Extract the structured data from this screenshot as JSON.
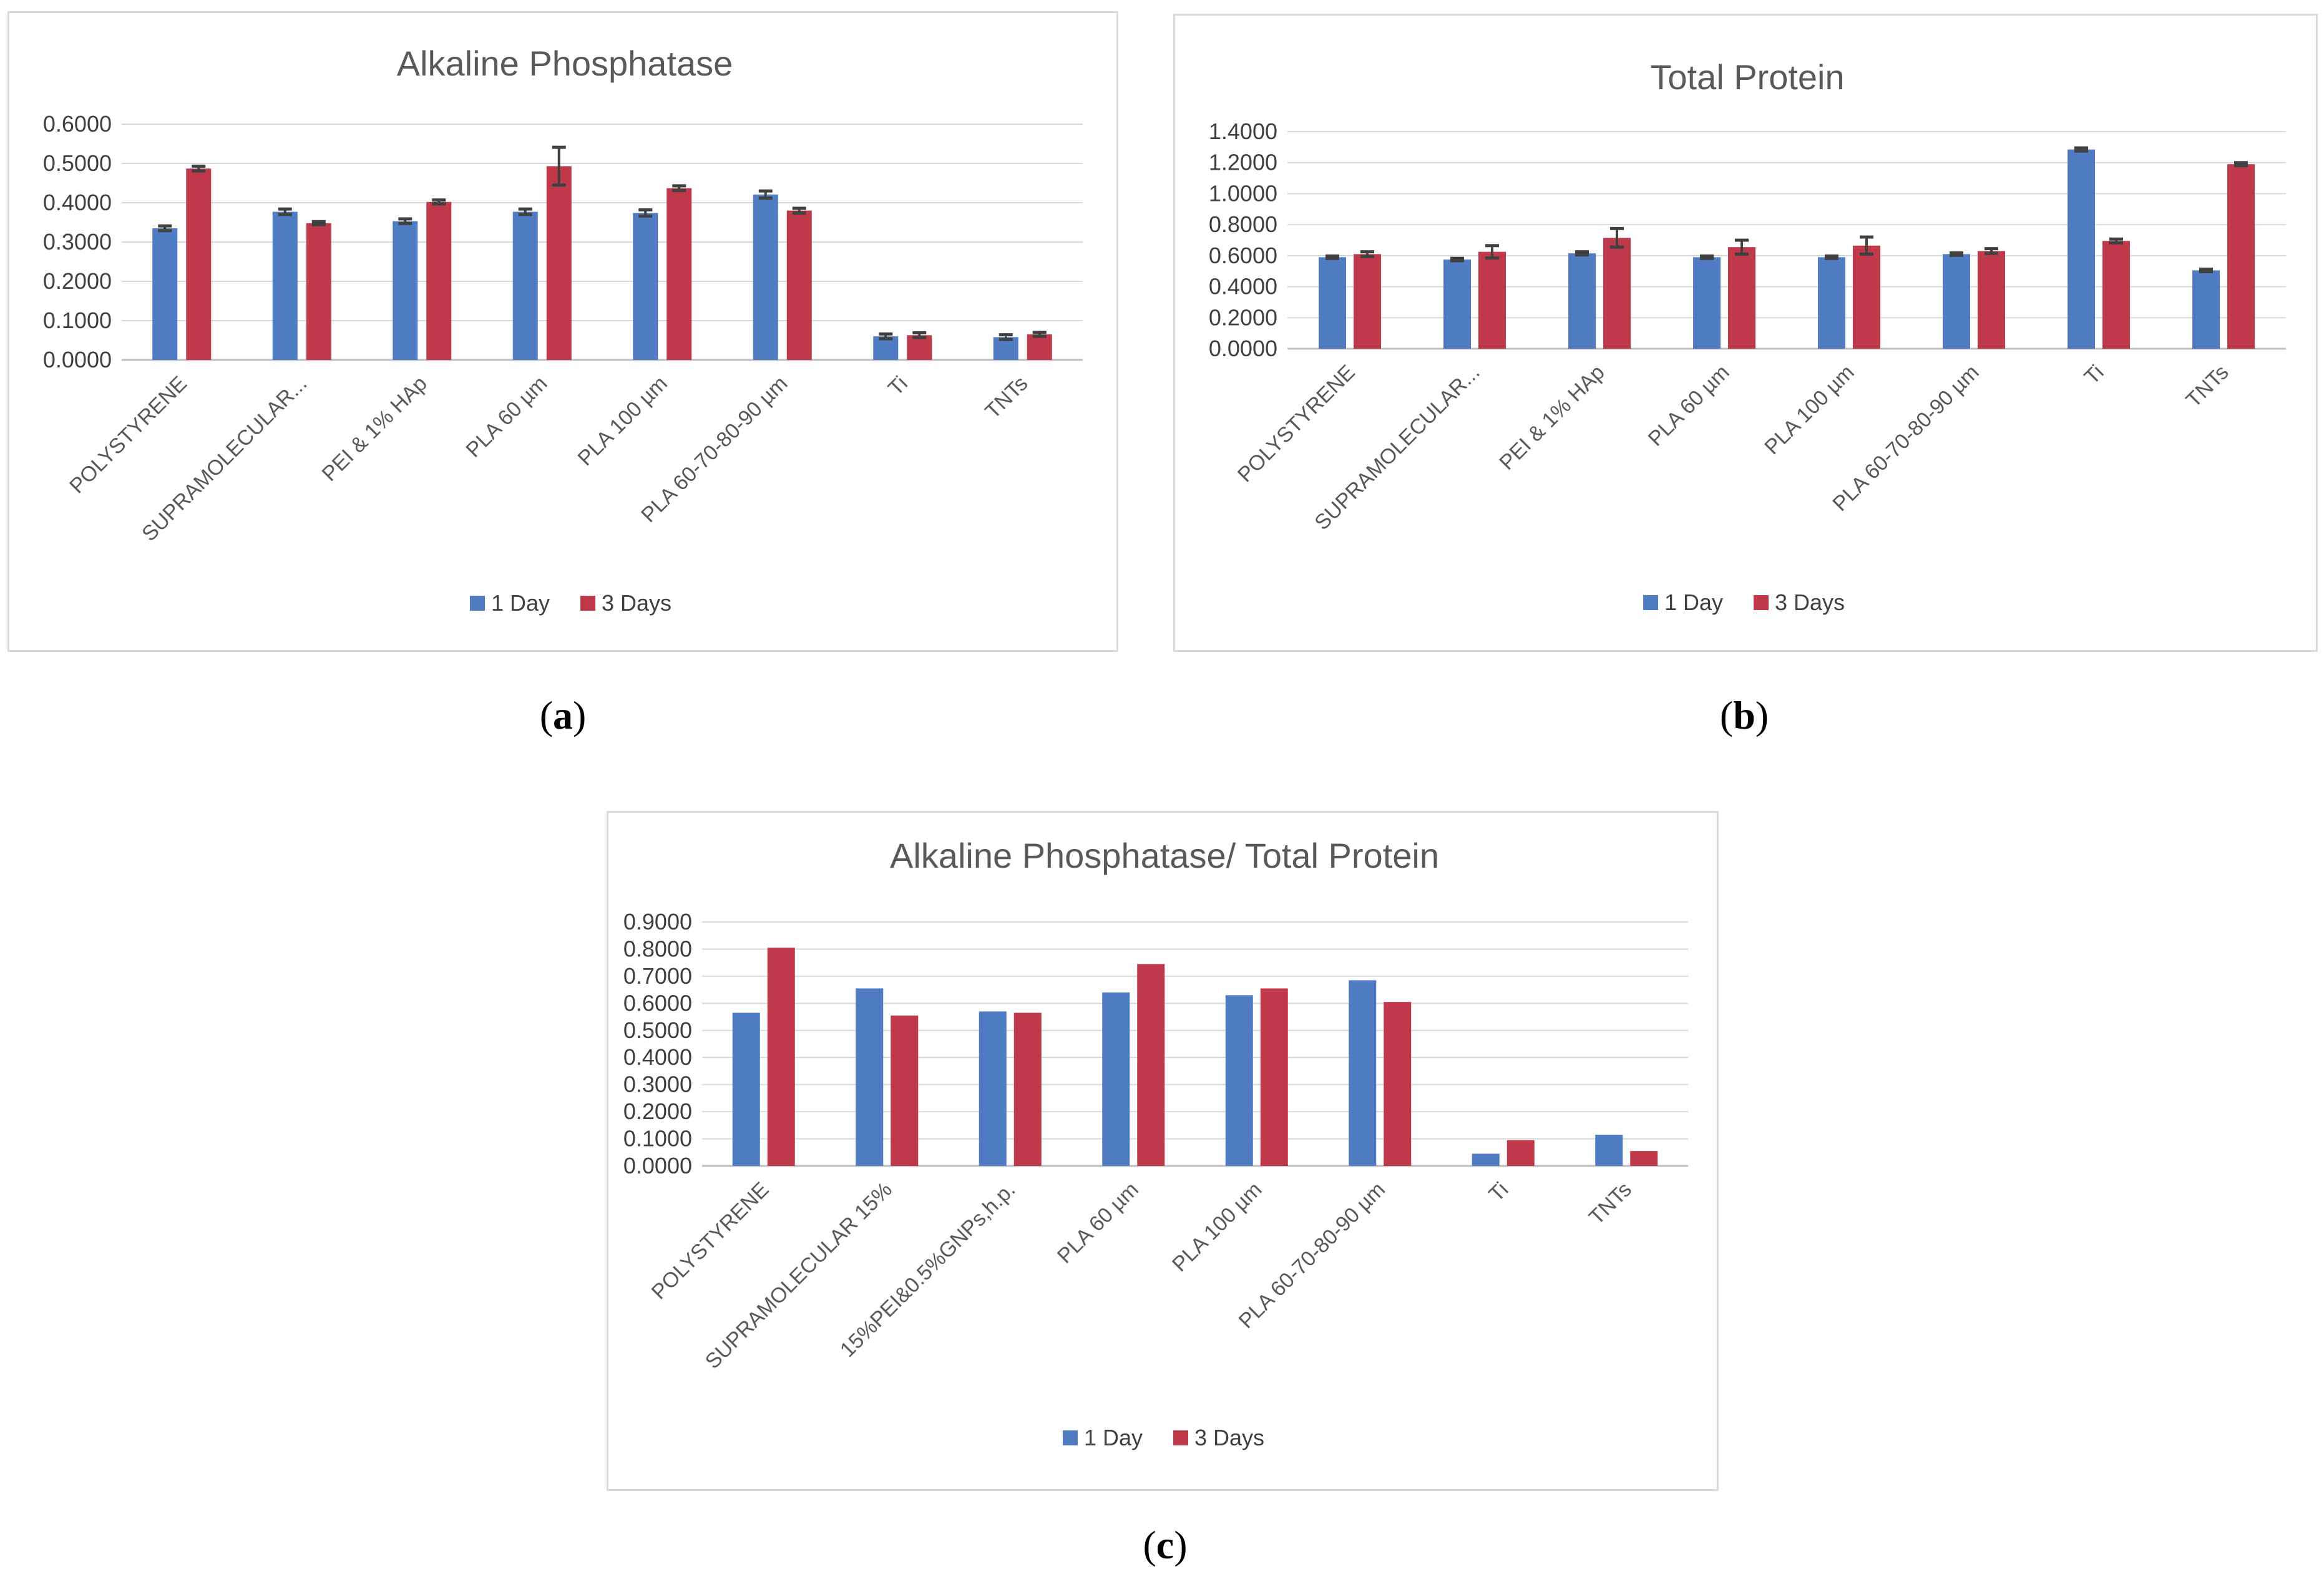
{
  "colors": {
    "day1": "#4f7cc3",
    "day3": "#c0394b",
    "error": "#404040",
    "grid": "#d9d9d9",
    "axis": "#bfbfbf"
  },
  "captions": {
    "a": "a",
    "b": "b",
    "c": "c"
  },
  "chart_data": [
    {
      "id": "a",
      "type": "bar",
      "title": "Alkaline Phosphatase",
      "categories": [
        "POLYSTYRENE",
        "SUPRAMOLECULAR...",
        "PEI & 1% HAp",
        "PLA 60 µm",
        "PLA 100 µm",
        "PLA 60-70-80-90 µm",
        "Ti",
        "TNTs"
      ],
      "series": [
        {
          "name": "1 Day",
          "values": [
            0.335,
            0.377,
            0.353,
            0.377,
            0.374,
            0.421,
            0.06,
            0.058
          ],
          "errors": [
            0.006,
            0.007,
            0.006,
            0.007,
            0.008,
            0.009,
            0.006,
            0.006
          ]
        },
        {
          "name": "3 Days",
          "values": [
            0.487,
            0.348,
            0.402,
            0.493,
            0.437,
            0.38,
            0.063,
            0.065
          ],
          "errors": [
            0.006,
            0.004,
            0.005,
            0.048,
            0.006,
            0.006,
            0.006,
            0.005
          ]
        }
      ],
      "ylim": [
        0,
        0.6
      ],
      "yticks": [
        "0.0000",
        "0.1000",
        "0.2000",
        "0.3000",
        "0.4000",
        "0.5000",
        "0.6000"
      ],
      "legend": "bottom"
    },
    {
      "id": "b",
      "type": "bar",
      "title": "Total Protein",
      "categories": [
        "POLYSTYRENE",
        "SUPRAMOLECULAR...",
        "PEI & 1% HAp",
        "PLA 60 µm",
        "PLA 100 µm",
        "PLA 60-70-80-90 µm",
        "Ti",
        "TNTs"
      ],
      "series": [
        {
          "name": "1 Day",
          "values": [
            0.59,
            0.575,
            0.615,
            0.59,
            0.59,
            0.61,
            1.285,
            0.505
          ],
          "errors": [
            0.008,
            0.008,
            0.01,
            0.008,
            0.008,
            0.008,
            0.01,
            0.008
          ]
        },
        {
          "name": "3 Days",
          "values": [
            0.61,
            0.625,
            0.715,
            0.655,
            0.665,
            0.63,
            0.695,
            1.19
          ],
          "errors": [
            0.015,
            0.04,
            0.06,
            0.045,
            0.055,
            0.015,
            0.012,
            0.01
          ]
        }
      ],
      "ylim": [
        0,
        1.4
      ],
      "yticks": [
        "0.0000",
        "0.2000",
        "0.4000",
        "0.6000",
        "0.8000",
        "1.0000",
        "1.2000",
        "1.4000"
      ],
      "legend": "bottom"
    },
    {
      "id": "c",
      "type": "bar",
      "title": "Alkaline Phosphatase/ Total Protein",
      "categories": [
        "POLYSTYRENE",
        "SUPRAMOLECULAR 15%",
        "15%PEI&0.5%GNPs,h.p.",
        "PLA 60 µm",
        "PLA 100 µm",
        "PLA 60-70-80-90 µm",
        "Ti",
        "TNTs"
      ],
      "series": [
        {
          "name": "1 Day",
          "values": [
            0.565,
            0.655,
            0.57,
            0.64,
            0.63,
            0.685,
            0.045,
            0.115
          ],
          "errors": []
        },
        {
          "name": "3 Days",
          "values": [
            0.805,
            0.555,
            0.565,
            0.745,
            0.655,
            0.605,
            0.095,
            0.055
          ],
          "errors": []
        }
      ],
      "ylim": [
        0,
        0.9
      ],
      "yticks": [
        "0.0000",
        "0.1000",
        "0.2000",
        "0.3000",
        "0.4000",
        "0.5000",
        "0.6000",
        "0.7000",
        "0.8000",
        "0.9000"
      ],
      "legend": "bottom"
    }
  ]
}
